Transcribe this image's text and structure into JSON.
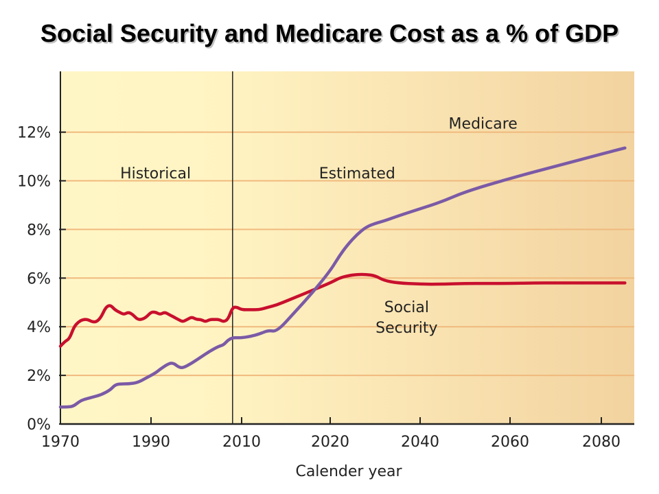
{
  "chart_data": {
    "type": "line",
    "title": "Social Security and Medicare Cost as a % of GDP",
    "xlabel": "Calender year",
    "ylabel": "",
    "xlim": [
      1970,
      2087
    ],
    "ylim": [
      0,
      14.5
    ],
    "x_ticks": [
      1970,
      1990,
      2010,
      2020,
      2040,
      2060,
      2080
    ],
    "y_ticks": [
      0,
      2,
      4,
      6,
      8,
      10,
      12
    ],
    "y_tick_labels": [
      "0%",
      "2%",
      "4%",
      "6%",
      "8%",
      "10%",
      "12%"
    ],
    "grid": "horizontal",
    "divider_year": 2008,
    "annotations": [
      {
        "text": "Historical",
        "x": 1991,
        "y": 10.1
      },
      {
        "text": "Estimated",
        "x": 2026,
        "y": 10.1
      },
      {
        "text": "Medicare",
        "x": 2054,
        "y": 12.15
      },
      {
        "text": "Social",
        "x": 2037,
        "y": 4.6
      },
      {
        "text": "Security",
        "x": 2037,
        "y": 3.75
      }
    ],
    "series": [
      {
        "name": "Social Security",
        "color": "#c8102e",
        "x": [
          1970,
          1971,
          1972,
          1973,
          1974,
          1975,
          1976,
          1977,
          1978,
          1979,
          1980,
          1981,
          1982,
          1983,
          1984,
          1985,
          1986,
          1987,
          1988,
          1989,
          1990,
          1991,
          1992,
          1993,
          1994,
          1995,
          1996,
          1997,
          1998,
          1999,
          2000,
          2001,
          2002,
          2003,
          2004,
          2005,
          2006,
          2007,
          2008,
          2009,
          2010,
          2011,
          2012,
          2013,
          2014,
          2016,
          2018,
          2020,
          2022,
          2024,
          2026,
          2028,
          2030,
          2032,
          2035,
          2040,
          2045,
          2050,
          2055,
          2060,
          2065,
          2070,
          2075,
          2080,
          2085
        ],
        "values": [
          3.2,
          3.4,
          3.5,
          4.0,
          4.2,
          4.3,
          4.3,
          4.2,
          4.2,
          4.4,
          4.8,
          4.9,
          4.7,
          4.6,
          4.5,
          4.6,
          4.5,
          4.3,
          4.3,
          4.4,
          4.6,
          4.6,
          4.5,
          4.6,
          4.5,
          4.4,
          4.3,
          4.2,
          4.3,
          4.4,
          4.3,
          4.3,
          4.2,
          4.3,
          4.3,
          4.3,
          4.2,
          4.3,
          4.8,
          4.8,
          4.7,
          4.7,
          4.7,
          4.8,
          4.9,
          5.2,
          5.5,
          5.8,
          6.0,
          6.1,
          6.15,
          6.15,
          6.1,
          5.9,
          5.8,
          5.75,
          5.75,
          5.78,
          5.78,
          5.78,
          5.8,
          5.8,
          5.8,
          5.8,
          5.8
        ]
      },
      {
        "name": "Medicare",
        "color": "#7b5aa6",
        "x": [
          1970,
          1972,
          1973,
          1974,
          1975,
          1977,
          1979,
          1981,
          1982,
          1983,
          1985,
          1987,
          1989,
          1991,
          1992,
          1994,
          1995,
          1996,
          1997,
          1999,
          2001,
          2003,
          2005,
          2006,
          2007,
          2008,
          2009,
          2010,
          2011,
          2012,
          2013,
          2014,
          2016,
          2018,
          2020,
          2022,
          2024,
          2026,
          2028,
          2030,
          2032,
          2035,
          2040,
          2045,
          2050,
          2060,
          2070,
          2080,
          2085
        ],
        "values": [
          0.7,
          0.7,
          0.75,
          0.9,
          1.0,
          1.1,
          1.2,
          1.4,
          1.6,
          1.65,
          1.65,
          1.7,
          1.9,
          2.1,
          2.25,
          2.5,
          2.5,
          2.35,
          2.3,
          2.5,
          2.75,
          3.0,
          3.2,
          3.25,
          3.45,
          3.55,
          3.55,
          3.55,
          3.6,
          3.7,
          3.85,
          3.8,
          4.6,
          5.4,
          6.3,
          6.9,
          7.4,
          7.8,
          8.1,
          8.25,
          8.35,
          8.55,
          8.85,
          9.15,
          9.55,
          10.1,
          10.6,
          11.1,
          11.35
        ]
      }
    ]
  }
}
